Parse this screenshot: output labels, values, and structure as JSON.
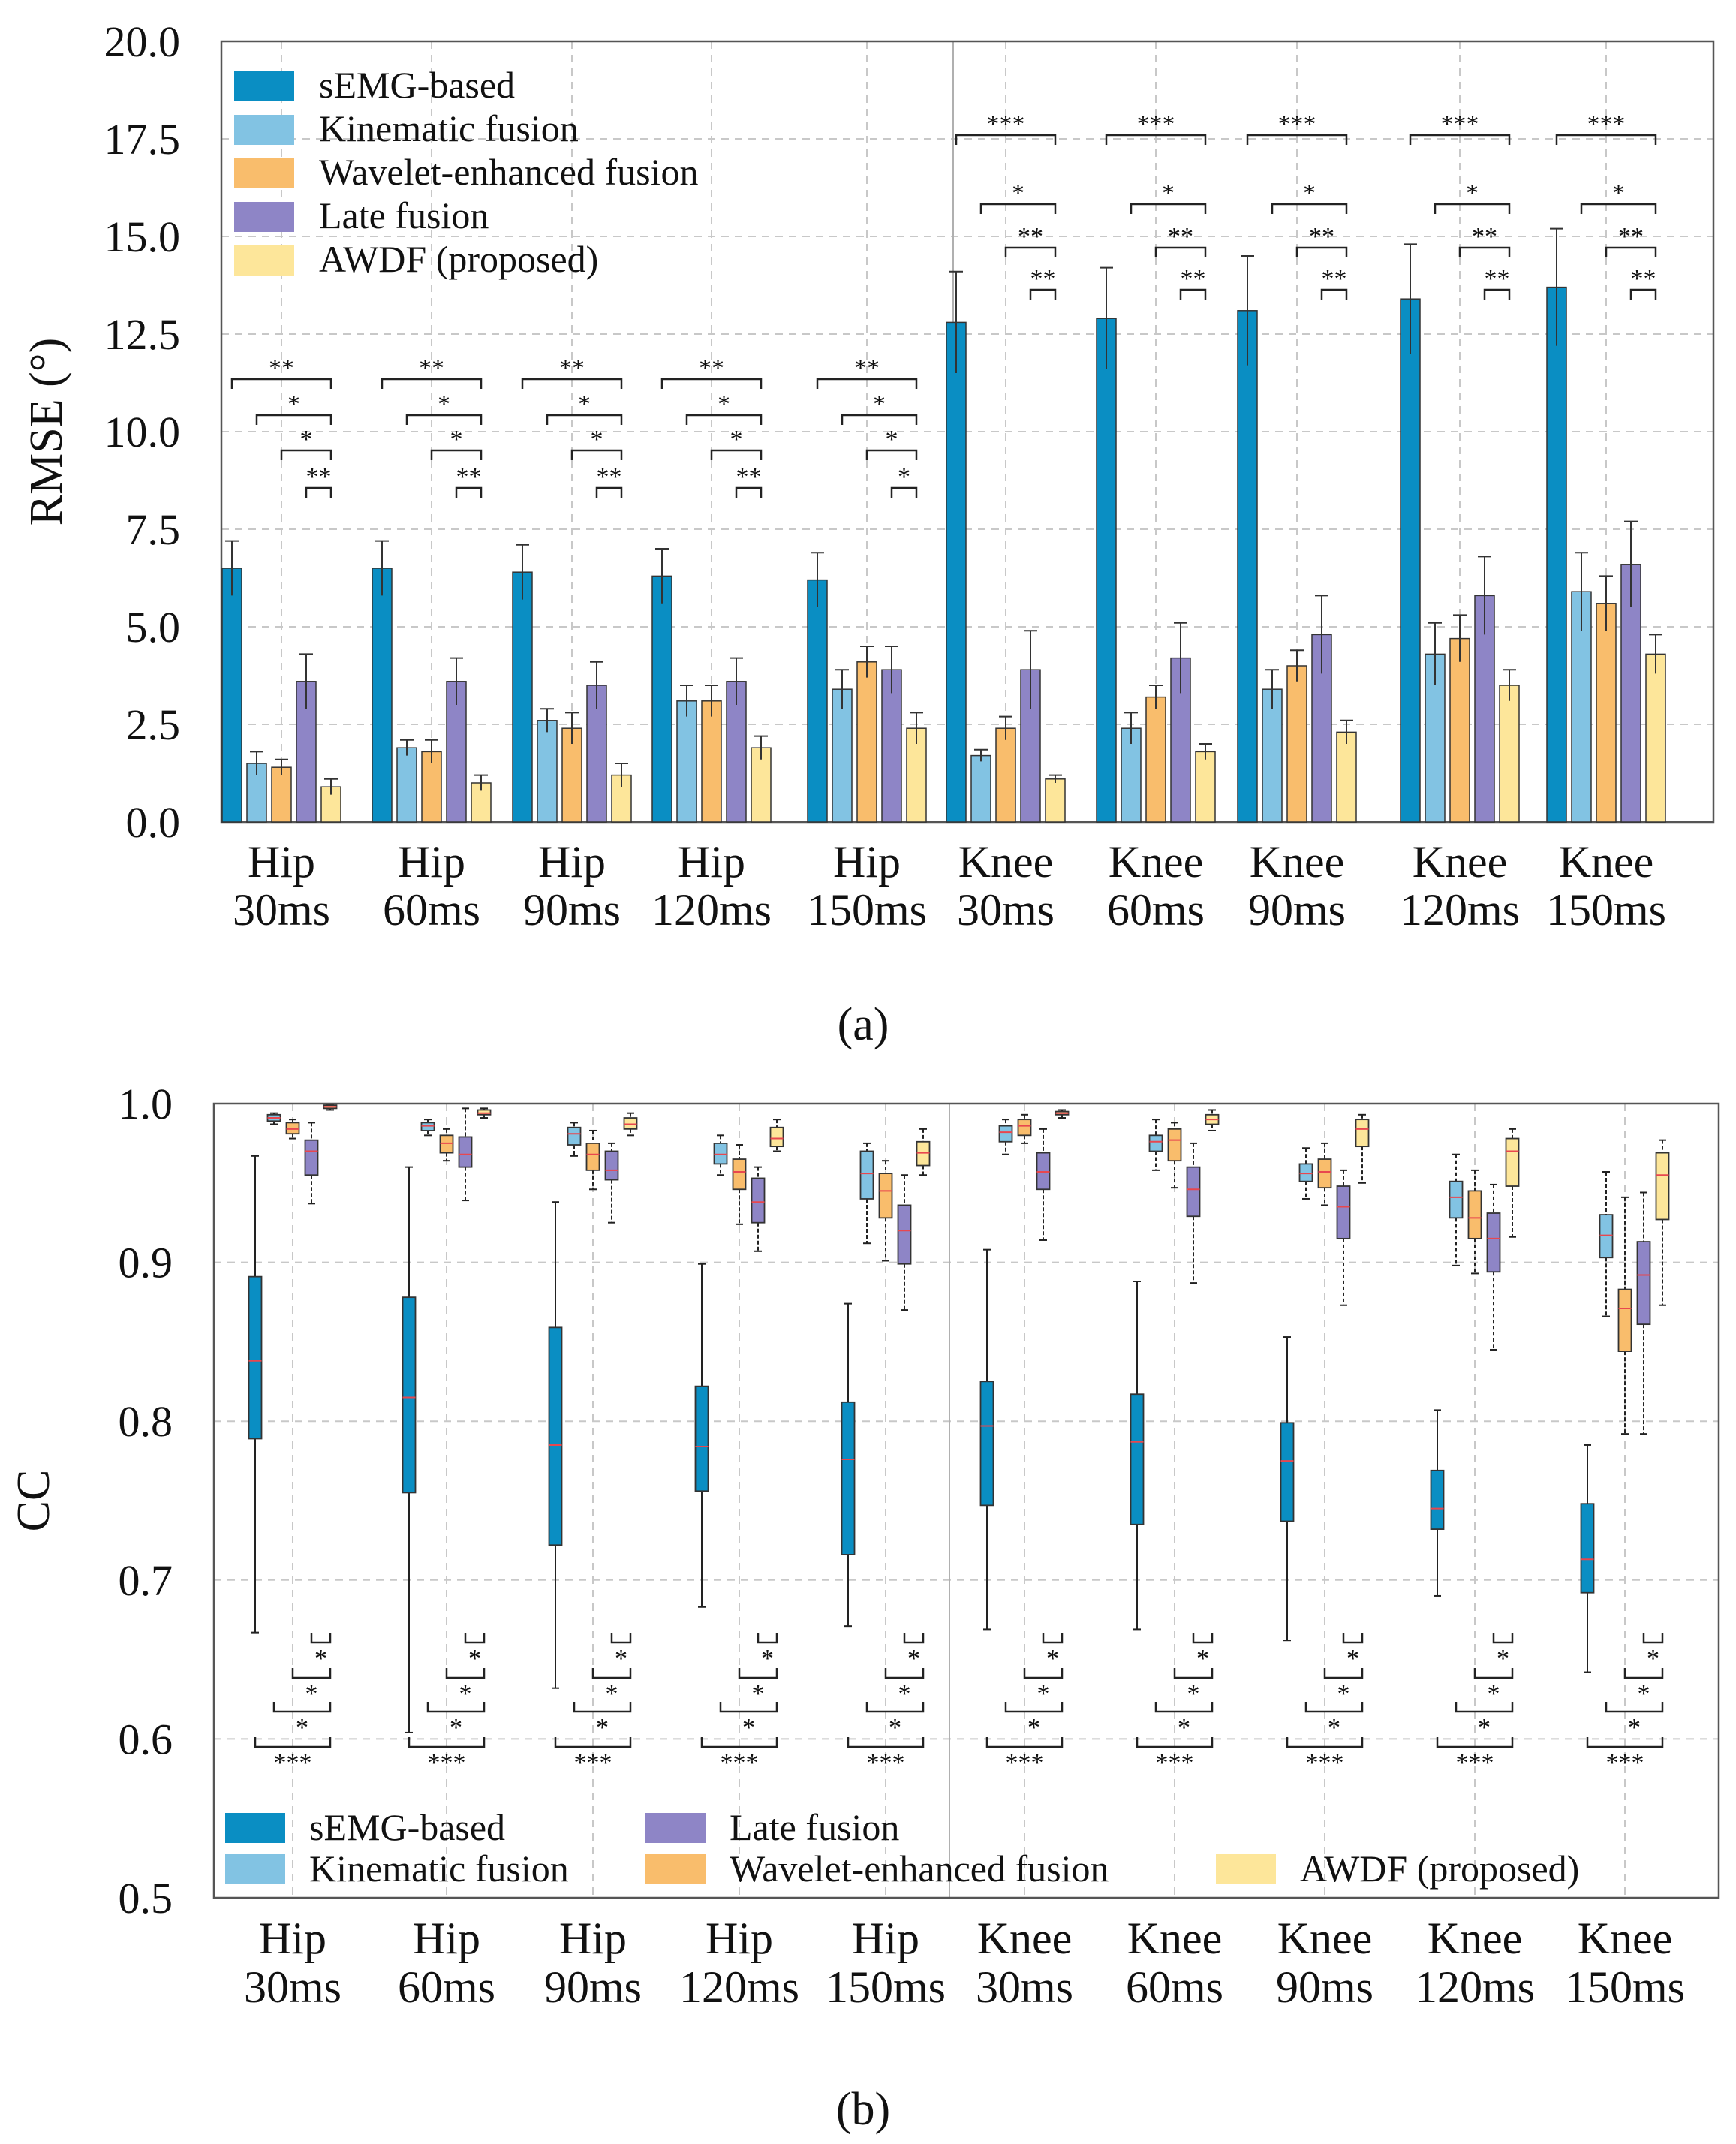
{
  "colors": {
    "sEMG-based": "#0a8ec3",
    "Kinematic fusion": "#82c3e3",
    "Wavelet-enhanced fusion": "#f9bd6c",
    "Late fusion": "#8e85c6",
    "AWDF (proposed)": "#fde69a",
    "median": "#e8474f"
  },
  "chart_data": [
    {
      "panel": "(a)",
      "type": "bar",
      "ylabel": "RMSE (°)",
      "xlabel": "",
      "ylim": [
        0,
        20
      ],
      "yticks": [
        "0.0",
        "2.5",
        "5.0",
        "7.5",
        "10.0",
        "12.5",
        "15.0",
        "17.5",
        "20.0"
      ],
      "grid": true,
      "legend_position": "top-left",
      "categories": [
        [
          "Hip",
          "30ms"
        ],
        [
          "Hip",
          "60ms"
        ],
        [
          "Hip",
          "90ms"
        ],
        [
          "Hip",
          "120ms"
        ],
        [
          "Hip",
          "150ms"
        ],
        [
          "Knee",
          "30ms"
        ],
        [
          "Knee",
          "60ms"
        ],
        [
          "Knee",
          "90ms"
        ],
        [
          "Knee",
          "120ms"
        ],
        [
          "Knee",
          "150ms"
        ]
      ],
      "series": [
        {
          "name": "sEMG-based",
          "values": [
            6.5,
            6.5,
            6.4,
            6.3,
            6.2,
            12.8,
            12.9,
            13.1,
            13.4,
            13.7
          ],
          "errors": [
            0.7,
            0.7,
            0.7,
            0.7,
            0.7,
            1.3,
            1.3,
            1.4,
            1.4,
            1.5
          ]
        },
        {
          "name": "Kinematic fusion",
          "values": [
            1.5,
            1.9,
            2.6,
            3.1,
            3.4,
            1.7,
            2.4,
            3.4,
            4.3,
            5.9
          ],
          "errors": [
            0.3,
            0.2,
            0.3,
            0.4,
            0.5,
            0.15,
            0.4,
            0.5,
            0.8,
            1.0
          ]
        },
        {
          "name": "Wavelet-enhanced fusion",
          "values": [
            1.4,
            1.8,
            2.4,
            3.1,
            4.1,
            2.4,
            3.2,
            4.0,
            4.7,
            5.6
          ],
          "errors": [
            0.2,
            0.3,
            0.4,
            0.4,
            0.4,
            0.3,
            0.3,
            0.4,
            0.6,
            0.7
          ]
        },
        {
          "name": "Late fusion",
          "values": [
            3.6,
            3.6,
            3.5,
            3.6,
            3.9,
            3.9,
            4.2,
            4.8,
            5.8,
            6.6
          ],
          "errors": [
            0.7,
            0.6,
            0.6,
            0.6,
            0.6,
            1.0,
            0.9,
            1.0,
            1.0,
            1.1
          ]
        },
        {
          "name": "AWDF (proposed)",
          "values": [
            0.9,
            1.0,
            1.2,
            1.9,
            2.4,
            1.1,
            1.8,
            2.3,
            3.5,
            4.3
          ],
          "errors": [
            0.2,
            0.2,
            0.3,
            0.3,
            0.4,
            0.1,
            0.2,
            0.3,
            0.4,
            0.5
          ]
        }
      ],
      "significance_hip": [
        "**",
        "*",
        "*",
        "**"
      ],
      "significance_hip_150": [
        "**",
        "*",
        "*",
        "*"
      ],
      "significance_knee": [
        "***",
        "*",
        "**",
        "**"
      ]
    },
    {
      "panel": "(b)",
      "type": "box",
      "ylabel": "CC",
      "xlabel": "",
      "ylim": [
        0.5,
        1.0
      ],
      "yticks": [
        "0.5",
        "0.6",
        "0.7",
        "0.8",
        "0.9",
        "1.0"
      ],
      "grid": true,
      "legend_position": "bottom",
      "categories": [
        [
          "Hip",
          "30ms"
        ],
        [
          "Hip",
          "60ms"
        ],
        [
          "Hip",
          "90ms"
        ],
        [
          "Hip",
          "120ms"
        ],
        [
          "Hip",
          "150ms"
        ],
        [
          "Knee",
          "30ms"
        ],
        [
          "Knee",
          "60ms"
        ],
        [
          "Knee",
          "90ms"
        ],
        [
          "Knee",
          "120ms"
        ],
        [
          "Knee",
          "150ms"
        ]
      ],
      "series": [
        {
          "name": "sEMG-based",
          "boxes": [
            [
              0.667,
              0.789,
              0.838,
              0.891,
              0.967
            ],
            [
              0.604,
              0.755,
              0.815,
              0.878,
              0.96
            ],
            [
              0.632,
              0.722,
              0.785,
              0.859,
              0.938
            ],
            [
              0.683,
              0.756,
              0.784,
              0.822,
              0.899
            ],
            [
              0.671,
              0.716,
              0.776,
              0.812,
              0.874
            ],
            [
              0.669,
              0.747,
              0.797,
              0.825,
              0.908
            ],
            [
              0.669,
              0.735,
              0.787,
              0.817,
              0.888
            ],
            [
              0.662,
              0.737,
              0.775,
              0.799,
              0.853
            ],
            [
              0.69,
              0.732,
              0.745,
              0.769,
              0.807
            ],
            [
              0.642,
              0.692,
              0.713,
              0.748,
              0.785
            ]
          ]
        },
        {
          "name": "Kinematic fusion",
          "boxes": [
            [
              0.987,
              0.989,
              0.991,
              0.993,
              0.994
            ],
            [
              0.98,
              0.983,
              0.986,
              0.988,
              0.99
            ],
            [
              0.967,
              0.974,
              0.981,
              0.985,
              0.988
            ],
            [
              0.955,
              0.962,
              0.968,
              0.975,
              0.98
            ],
            [
              0.912,
              0.94,
              0.956,
              0.97,
              0.975
            ],
            [
              0.968,
              0.976,
              0.982,
              0.986,
              0.99
            ],
            [
              0.958,
              0.97,
              0.976,
              0.98,
              0.99
            ],
            [
              0.94,
              0.951,
              0.956,
              0.962,
              0.972
            ],
            [
              0.898,
              0.928,
              0.941,
              0.951,
              0.968
            ],
            [
              0.866,
              0.903,
              0.917,
              0.93,
              0.957
            ]
          ]
        },
        {
          "name": "Wavelet-enhanced fusion",
          "boxes": [
            [
              0.978,
              0.981,
              0.984,
              0.988,
              0.99
            ],
            [
              0.964,
              0.969,
              0.975,
              0.98,
              0.984
            ],
            [
              0.946,
              0.958,
              0.968,
              0.975,
              0.983
            ],
            [
              0.924,
              0.946,
              0.957,
              0.965,
              0.974
            ],
            [
              0.901,
              0.928,
              0.945,
              0.956,
              0.964
            ],
            [
              0.975,
              0.98,
              0.986,
              0.99,
              0.993
            ],
            [
              0.947,
              0.964,
              0.977,
              0.984,
              0.988
            ],
            [
              0.936,
              0.947,
              0.957,
              0.965,
              0.975
            ],
            [
              0.893,
              0.915,
              0.928,
              0.945,
              0.958
            ],
            [
              0.792,
              0.844,
              0.871,
              0.883,
              0.941
            ]
          ]
        },
        {
          "name": "Late fusion",
          "boxes": [
            [
              0.937,
              0.955,
              0.97,
              0.977,
              0.988
            ],
            [
              0.939,
              0.96,
              0.968,
              0.979,
              0.997
            ],
            [
              0.925,
              0.952,
              0.958,
              0.97,
              0.975
            ],
            [
              0.907,
              0.925,
              0.938,
              0.953,
              0.96
            ],
            [
              0.87,
              0.899,
              0.92,
              0.936,
              0.955
            ],
            [
              0.914,
              0.946,
              0.957,
              0.969,
              0.984
            ],
            [
              0.887,
              0.929,
              0.946,
              0.96,
              0.975
            ],
            [
              0.873,
              0.915,
              0.935,
              0.948,
              0.958
            ],
            [
              0.845,
              0.894,
              0.915,
              0.931,
              0.949
            ],
            [
              0.792,
              0.861,
              0.892,
              0.913,
              0.944
            ]
          ]
        },
        {
          "name": "AWDF (proposed)",
          "boxes": [
            [
              0.996,
              0.997,
              0.998,
              0.999,
              0.999
            ],
            [
              0.991,
              0.993,
              0.994,
              0.996,
              0.997
            ],
            [
              0.98,
              0.984,
              0.987,
              0.991,
              0.994
            ],
            [
              0.97,
              0.973,
              0.978,
              0.985,
              0.99
            ],
            [
              0.955,
              0.961,
              0.969,
              0.976,
              0.984
            ],
            [
              0.991,
              0.993,
              0.994,
              0.995,
              0.996
            ],
            [
              0.983,
              0.987,
              0.99,
              0.993,
              0.996
            ],
            [
              0.95,
              0.973,
              0.984,
              0.99,
              0.993
            ],
            [
              0.916,
              0.948,
              0.97,
              0.978,
              0.984
            ],
            [
              0.873,
              0.927,
              0.955,
              0.969,
              0.977
            ]
          ]
        }
      ],
      "significance": [
        "*",
        "*",
        "*",
        "***"
      ]
    }
  ],
  "labels": {
    "panel_a": "(a)",
    "panel_b": "(b)",
    "legend_a": [
      "sEMG-based",
      "Kinematic fusion",
      "Wavelet-enhanced fusion",
      "Late fusion",
      "AWDF (proposed)"
    ],
    "legend_b": [
      "sEMG-based",
      "Late fusion",
      "Kinematic fusion",
      "Wavelet-enhanced fusion",
      "AWDF (proposed)"
    ]
  }
}
